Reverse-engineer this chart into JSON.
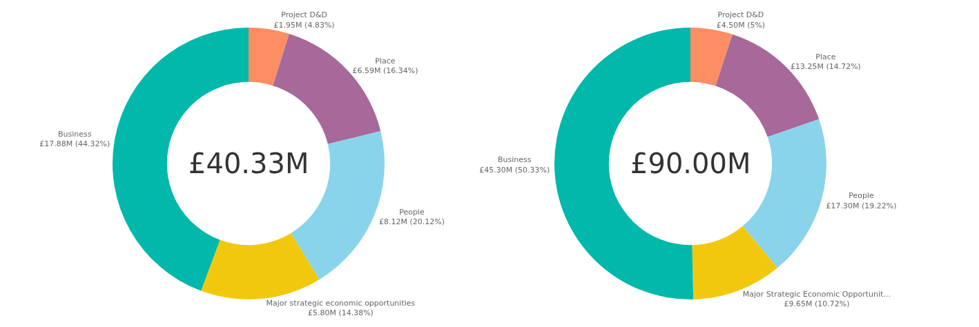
{
  "chart_data": [
    {
      "type": "donut",
      "categories": [
        "Project D&D",
        "Place",
        "People",
        "Major strategic economic opportunities",
        "Business"
      ],
      "values": [
        4.83,
        16.34,
        20.12,
        14.38,
        44.32
      ],
      "colors": [
        "#fd8d62",
        "#a66999",
        "#8ad4eb",
        "#f2c80f",
        "#01b8aa"
      ],
      "value_labels": [
        "£1.95M (4.83%)",
        "£6.59M (16.34%)",
        "£8.12M (20.12%)",
        "£5.80M (14.38%)",
        "£17.88M (44.32%)"
      ],
      "annotations": [
        "£40.33M"
      ]
    },
    {
      "type": "donut",
      "categories": [
        "Project D&D",
        "Place",
        "People",
        "Major Strategic Economic Opportunit…",
        "Business"
      ],
      "values": [
        5,
        14.72,
        19.22,
        10.72,
        50.33
      ],
      "colors": [
        "#fd8d62",
        "#a66999",
        "#8ad4eb",
        "#f2c80f",
        "#01b8aa"
      ],
      "value_labels": [
        "£4.50M (5%)",
        "£13.25M (14.72%)",
        "£17.30M (19.22%)",
        "£9.65M (10.72%)",
        "£45.30M (50.33%)"
      ],
      "annotations": [
        "£90.00M"
      ]
    }
  ]
}
